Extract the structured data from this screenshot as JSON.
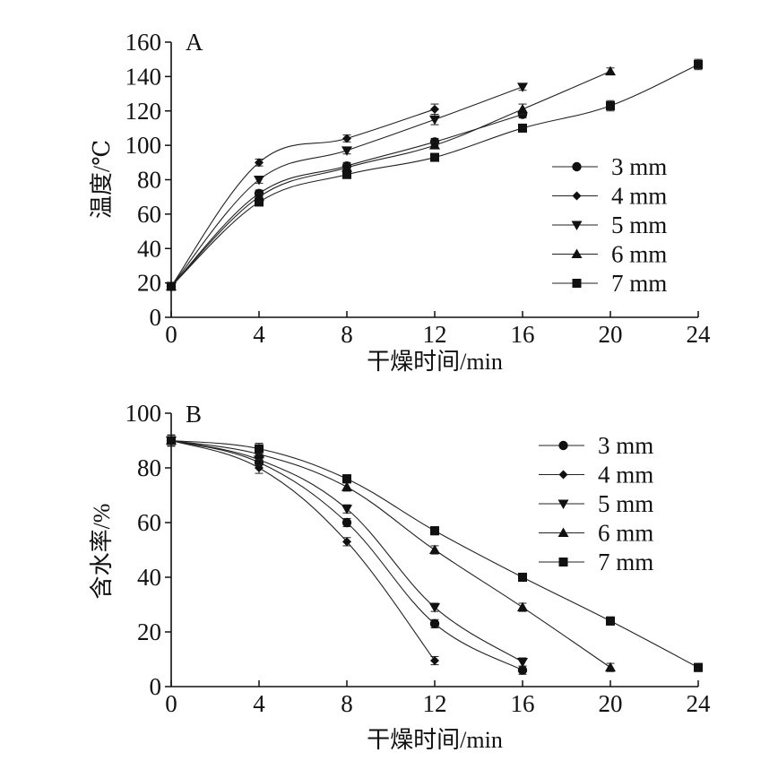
{
  "chart_data": [
    {
      "type": "line",
      "panel": "A",
      "xlabel": "干燥时间/min",
      "ylabel": "温度/℃",
      "xlim": [
        0,
        24
      ],
      "ylim": [
        0,
        160
      ],
      "xticks": [
        0,
        4,
        8,
        12,
        16,
        20,
        24
      ],
      "yticks": [
        0,
        20,
        40,
        60,
        80,
        100,
        120,
        140,
        160
      ],
      "grid": false,
      "legend_position": "right",
      "series": [
        {
          "name": "3 mm",
          "marker": "circle",
          "x": [
            0,
            4,
            8,
            12,
            16
          ],
          "y": [
            18,
            72,
            88,
            102,
            118
          ],
          "err": [
            1,
            2,
            2,
            2,
            2
          ]
        },
        {
          "name": "4 mm",
          "marker": "diamond",
          "x": [
            0,
            4,
            8,
            12
          ],
          "y": [
            18,
            90,
            104,
            121
          ],
          "err": [
            1,
            2,
            2,
            3
          ]
        },
        {
          "name": "5 mm",
          "marker": "triangle-down",
          "x": [
            0,
            4,
            8,
            12,
            16
          ],
          "y": [
            18,
            80,
            97,
            115,
            134
          ],
          "err": [
            1,
            2,
            2,
            3,
            2
          ]
        },
        {
          "name": "6 mm",
          "marker": "triangle-up",
          "x": [
            0,
            4,
            8,
            12,
            16,
            20
          ],
          "y": [
            18,
            70,
            87,
            100,
            121,
            143
          ],
          "err": [
            1,
            2,
            2,
            2,
            3,
            2
          ]
        },
        {
          "name": "7 mm",
          "marker": "square",
          "x": [
            0,
            4,
            8,
            12,
            16,
            20,
            24
          ],
          "y": [
            18,
            67,
            83,
            93,
            110,
            123,
            147
          ],
          "err": [
            1,
            2,
            2,
            2,
            2,
            3,
            3
          ]
        }
      ]
    },
    {
      "type": "line",
      "panel": "B",
      "xlabel": "干燥时间/min",
      "ylabel": "含水率/%",
      "xlim": [
        0,
        24
      ],
      "ylim": [
        0,
        100
      ],
      "xticks": [
        0,
        4,
        8,
        12,
        16,
        20,
        24
      ],
      "yticks": [
        0,
        20,
        40,
        60,
        80,
        100
      ],
      "grid": false,
      "legend_position": "top-right",
      "series": [
        {
          "name": "3 mm",
          "marker": "circle",
          "x": [
            0,
            4,
            8,
            12,
            16
          ],
          "y": [
            90,
            82,
            60,
            23,
            6
          ],
          "err": [
            2,
            2,
            1.5,
            1.5,
            1.5
          ]
        },
        {
          "name": "4 mm",
          "marker": "diamond",
          "x": [
            0,
            4,
            8,
            12
          ],
          "y": [
            90,
            80,
            53,
            9.5
          ],
          "err": [
            2,
            2,
            1.5,
            1.5
          ]
        },
        {
          "name": "5 mm",
          "marker": "triangle-down",
          "x": [
            0,
            4,
            8,
            12,
            16
          ],
          "y": [
            90,
            83,
            65,
            29,
            9
          ],
          "err": [
            2,
            2,
            1.5,
            1.5,
            1.5
          ]
        },
        {
          "name": "6 mm",
          "marker": "triangle-up",
          "x": [
            0,
            4,
            8,
            12,
            16,
            20
          ],
          "y": [
            90,
            85,
            73,
            50,
            29,
            7
          ],
          "err": [
            2,
            2,
            1.5,
            1.5,
            1.5,
            1.5
          ]
        },
        {
          "name": "7 mm",
          "marker": "square",
          "x": [
            0,
            4,
            8,
            12,
            16,
            20,
            24
          ],
          "y": [
            90,
            87,
            76,
            57,
            40,
            24,
            7
          ],
          "err": [
            2,
            2,
            1.5,
            1.5,
            1.5,
            1.5,
            1.5
          ]
        }
      ]
    }
  ]
}
